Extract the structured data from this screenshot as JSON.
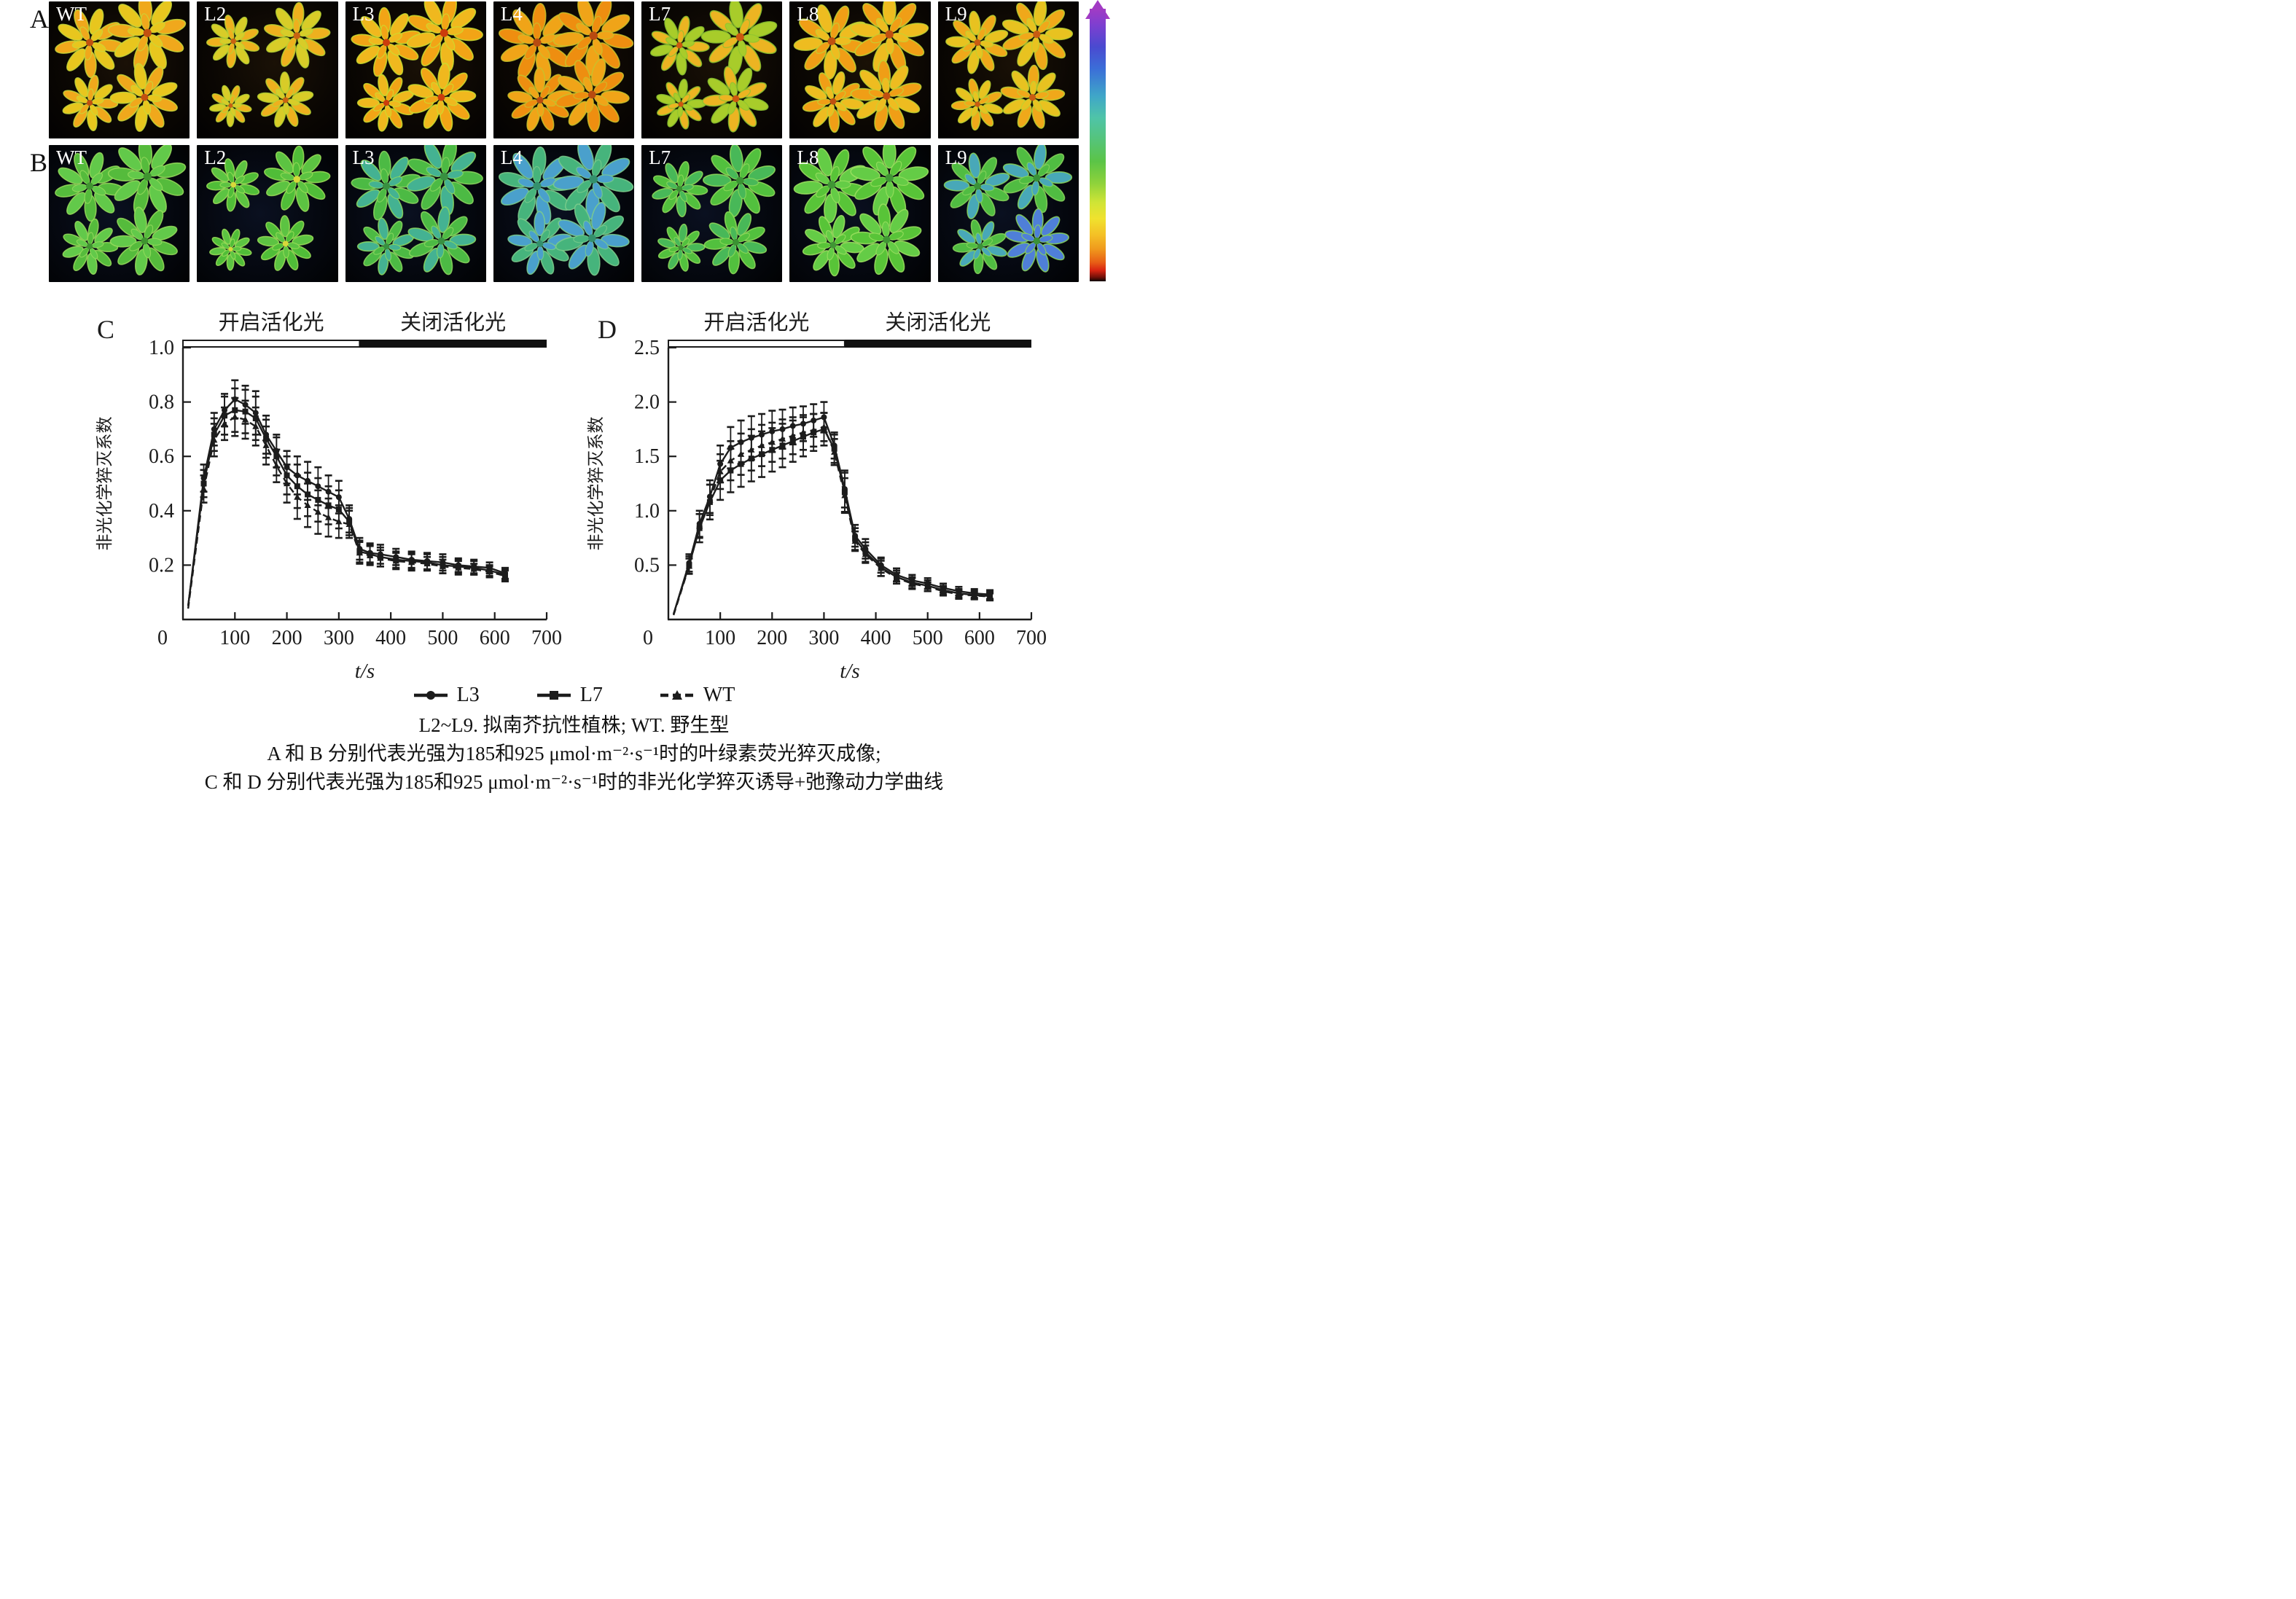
{
  "figure": {
    "panel_letters": {
      "A": "A",
      "B": "B",
      "C": "C",
      "D": "D"
    },
    "row_a": {
      "panels": [
        {
          "label": "WT",
          "leaf": "#f0a81c",
          "leaf2": "#e8c61e",
          "edge": "#c8d838",
          "center": "#c25010",
          "plants": [
            [
              0.29,
              0.3,
              1.0
            ],
            [
              0.7,
              0.23,
              1.12
            ],
            [
              0.29,
              0.74,
              0.8
            ],
            [
              0.68,
              0.7,
              0.98
            ]
          ]
        },
        {
          "label": "L2",
          "leaf": "#eeb01e",
          "leaf2": "#d8cc28",
          "edge": "#b8d434",
          "center": "#c86212",
          "plants": [
            [
              0.26,
              0.29,
              0.76
            ],
            [
              0.71,
              0.25,
              0.95
            ],
            [
              0.24,
              0.76,
              0.6
            ],
            [
              0.63,
              0.72,
              0.8
            ]
          ]
        },
        {
          "label": "L3",
          "leaf": "#f2a416",
          "leaf2": "#f0b81e",
          "edge": "#cade30",
          "center": "#cc3c0c",
          "plants": [
            [
              0.29,
              0.3,
              1.0
            ],
            [
              0.7,
              0.23,
              1.1
            ],
            [
              0.29,
              0.74,
              0.82
            ],
            [
              0.68,
              0.7,
              0.98
            ]
          ]
        },
        {
          "label": "L4",
          "leaf": "#ee8e10",
          "leaf2": "#f0a418",
          "edge": "#c8c22c",
          "center": "#b84a10",
          "plants": [
            [
              0.31,
              0.3,
              1.12
            ],
            [
              0.71,
              0.25,
              1.15
            ],
            [
              0.33,
              0.72,
              0.92
            ],
            [
              0.7,
              0.68,
              1.06
            ]
          ]
        },
        {
          "label": "L7",
          "leaf": "#ecb422",
          "leaf2": "#a8cc2a",
          "edge": "#8cc430",
          "center": "#cc5810",
          "plants": [
            [
              0.27,
              0.32,
              0.85
            ],
            [
              0.7,
              0.26,
              1.1
            ],
            [
              0.28,
              0.75,
              0.72
            ],
            [
              0.67,
              0.71,
              0.95
            ]
          ]
        },
        {
          "label": "L8",
          "leaf": "#f09e16",
          "leaf2": "#eebc20",
          "edge": "#c0d434",
          "center": "#c05010",
          "plants": [
            [
              0.3,
              0.29,
              1.08
            ],
            [
              0.71,
              0.24,
              1.12
            ],
            [
              0.31,
              0.73,
              0.88
            ],
            [
              0.69,
              0.69,
              1.02
            ]
          ]
        },
        {
          "label": "L9",
          "leaf": "#f0a81a",
          "leaf2": "#e8c220",
          "edge": "#bcd232",
          "center": "#c85c12",
          "plants": [
            [
              0.28,
              0.3,
              0.9
            ],
            [
              0.7,
              0.24,
              1.02
            ],
            [
              0.28,
              0.75,
              0.74
            ],
            [
              0.67,
              0.7,
              0.92
            ]
          ]
        }
      ]
    },
    "row_b": {
      "panels": [
        {
          "label": "WT",
          "leaf": "#55bb3c",
          "leaf2": "#62c94a",
          "edge": "#96dc5c",
          "center": "#3f9430",
          "plants": [
            [
              0.29,
              0.3,
              1.0
            ],
            [
              0.7,
              0.23,
              1.12
            ],
            [
              0.29,
              0.74,
              0.8
            ],
            [
              0.68,
              0.7,
              0.98
            ]
          ]
        },
        {
          "label": "L2",
          "leaf": "#50bd38",
          "leaf2": "#5cc342",
          "edge": "#9ade58",
          "center": "#d8d83a",
          "plants": [
            [
              0.26,
              0.29,
              0.76
            ],
            [
              0.71,
              0.25,
              0.95
            ],
            [
              0.24,
              0.76,
              0.6
            ],
            [
              0.63,
              0.72,
              0.8
            ]
          ]
        },
        {
          "label": "L3",
          "leaf": "#4cba44",
          "leaf2": "#44b292",
          "edge": "#8cd860",
          "center": "#389040",
          "plants": [
            [
              0.29,
              0.3,
              1.0
            ],
            [
              0.7,
              0.23,
              1.1
            ],
            [
              0.29,
              0.74,
              0.82
            ],
            [
              0.68,
              0.7,
              0.98
            ]
          ]
        },
        {
          "label": "L4",
          "leaf": "#46b47c",
          "leaf2": "#4aa0cc",
          "edge": "#7ccc8c",
          "center": "#34906c",
          "plants": [
            [
              0.31,
              0.3,
              1.12
            ],
            [
              0.71,
              0.25,
              1.15
            ],
            [
              0.33,
              0.72,
              0.92
            ],
            [
              0.7,
              0.68,
              1.06
            ]
          ]
        },
        {
          "label": "L7",
          "leaf": "#52c03e",
          "leaf2": "#48b858",
          "edge": "#90da5a",
          "center": "#3a9232",
          "plants": [
            [
              0.27,
              0.32,
              0.8
            ],
            [
              0.7,
              0.26,
              1.05
            ],
            [
              0.28,
              0.75,
              0.68
            ],
            [
              0.67,
              0.71,
              0.9
            ]
          ]
        },
        {
          "label": "L8",
          "leaf": "#58c438",
          "leaf2": "#64cc46",
          "edge": "#9ce060",
          "center": "#409634",
          "plants": [
            [
              0.3,
              0.29,
              1.08
            ],
            [
              0.71,
              0.24,
              1.12
            ],
            [
              0.31,
              0.73,
              0.88
            ],
            [
              0.69,
              0.69,
              1.02
            ]
          ]
        },
        {
          "label": "L9",
          "leaf": "#50bc42",
          "leaf2": "#48a8b8",
          "edge": "#88d45c",
          "center": "#3a9238",
          "plants": [
            [
              0.28,
              0.3,
              0.95
            ],
            [
              0.7,
              0.24,
              1.0
            ],
            [
              0.3,
              0.74,
              0.78
            ],
            [
              0.7,
              0.7,
              0.92,
              "#4f7fd8"
            ]
          ]
        }
      ]
    },
    "colorbar": {
      "stops": [
        {
          "c": "#a23bc4",
          "p": 0
        },
        {
          "c": "#7d3fd0",
          "p": 6
        },
        {
          "c": "#4a4ad0",
          "p": 14
        },
        {
          "c": "#3b6ed8",
          "p": 22
        },
        {
          "c": "#3fa6c8",
          "p": 32
        },
        {
          "c": "#4fc4a8",
          "p": 40
        },
        {
          "c": "#55c47a",
          "p": 48
        },
        {
          "c": "#5bc447",
          "p": 56
        },
        {
          "c": "#8ed23b",
          "p": 64
        },
        {
          "c": "#cfe436",
          "p": 71
        },
        {
          "c": "#f0e22e",
          "p": 77
        },
        {
          "c": "#f4c026",
          "p": 83
        },
        {
          "c": "#f09b1d",
          "p": 88
        },
        {
          "c": "#e85f16",
          "p": 93
        },
        {
          "c": "#d82412",
          "p": 96
        },
        {
          "c": "#701008",
          "p": 98.5
        },
        {
          "c": "#0c0503",
          "p": 100
        }
      ]
    },
    "legend": [
      {
        "label": "L3",
        "marker": "circle",
        "line": "solid"
      },
      {
        "label": "L7",
        "marker": "square",
        "line": "solid"
      },
      {
        "label": "WT",
        "marker": "triangle",
        "line": "dashed"
      }
    ],
    "captions": [
      "L2~L9. 拟南芥抗性植株; WT. 野生型",
      "A 和 B 分别代表光强为185和925 μmol·m⁻²·s⁻¹时的叶绿素荧光猝灭成像;",
      "C 和 D 分别代表光强为185和925 μmol·m⁻²·s⁻¹时的非光化学猝灭诱导+弛豫动力学曲线"
    ]
  },
  "chart_data": [
    {
      "panel": "C",
      "type": "line",
      "title_light_on": "开启活化光",
      "title_light_off": "关闭活化光",
      "xlabel": "t/s",
      "ylabel": "非光化学猝灭系数",
      "xlim": [
        0,
        700
      ],
      "ylim": [
        0,
        1.0
      ],
      "xticks": [
        0,
        100,
        200,
        300,
        400,
        500,
        600,
        700
      ],
      "yticks": [
        0.2,
        0.4,
        0.6,
        0.8,
        1.0
      ],
      "light_off_time_s": 340,
      "x": [
        10,
        40,
        60,
        80,
        100,
        120,
        140,
        160,
        180,
        200,
        220,
        240,
        260,
        280,
        300,
        320,
        340,
        360,
        380,
        410,
        440,
        470,
        500,
        530,
        560,
        590,
        620
      ],
      "series": [
        {
          "name": "L3",
          "marker": "circle",
          "line": "solid",
          "values": [
            0.05,
            0.52,
            0.7,
            0.77,
            0.81,
            0.79,
            0.76,
            0.68,
            0.62,
            0.56,
            0.53,
            0.51,
            0.49,
            0.47,
            0.45,
            0.37,
            0.26,
            0.245,
            0.24,
            0.23,
            0.22,
            0.215,
            0.21,
            0.2,
            0.195,
            0.19,
            0.17
          ],
          "errors": [
            0.02,
            0.05,
            0.06,
            0.06,
            0.07,
            0.07,
            0.08,
            0.07,
            0.06,
            0.06,
            0.07,
            0.07,
            0.07,
            0.06,
            0.06,
            0.05,
            0.04,
            0.035,
            0.035,
            0.03,
            0.03,
            0.03,
            0.03,
            0.025,
            0.025,
            0.02,
            0.02
          ]
        },
        {
          "name": "L7",
          "marker": "square",
          "line": "solid",
          "values": [
            0.05,
            0.5,
            0.68,
            0.75,
            0.77,
            0.765,
            0.74,
            0.665,
            0.6,
            0.53,
            0.49,
            0.46,
            0.44,
            0.42,
            0.405,
            0.36,
            0.25,
            0.24,
            0.23,
            0.22,
            0.215,
            0.21,
            0.2,
            0.195,
            0.19,
            0.18,
            0.165
          ],
          "errors": [
            0.02,
            0.05,
            0.06,
            0.07,
            0.08,
            0.08,
            0.08,
            0.07,
            0.07,
            0.07,
            0.08,
            0.08,
            0.08,
            0.07,
            0.07,
            0.05,
            0.04,
            0.035,
            0.035,
            0.03,
            0.03,
            0.03,
            0.03,
            0.025,
            0.025,
            0.02,
            0.02
          ]
        },
        {
          "name": "WT",
          "marker": "triangle",
          "line": "dashed",
          "values": [
            0.04,
            0.48,
            0.66,
            0.72,
            0.745,
            0.735,
            0.71,
            0.64,
            0.565,
            0.5,
            0.45,
            0.42,
            0.395,
            0.375,
            0.36,
            0.35,
            0.245,
            0.235,
            0.225,
            0.215,
            0.21,
            0.205,
            0.195,
            0.19,
            0.185,
            0.175,
            0.16
          ],
          "errors": [
            0.02,
            0.05,
            0.06,
            0.06,
            0.07,
            0.07,
            0.07,
            0.07,
            0.06,
            0.07,
            0.08,
            0.08,
            0.08,
            0.07,
            0.06,
            0.05,
            0.04,
            0.035,
            0.03,
            0.03,
            0.03,
            0.025,
            0.025,
            0.025,
            0.02,
            0.02,
            0.02
          ]
        }
      ]
    },
    {
      "panel": "D",
      "type": "line",
      "title_light_on": "开启活化光",
      "title_light_off": "关闭活化光",
      "xlabel": "t/s",
      "ylabel": "非光化学猝灭系数",
      "xlim": [
        0,
        700
      ],
      "ylim": [
        0,
        2.5
      ],
      "xticks": [
        0,
        100,
        200,
        300,
        400,
        500,
        600,
        700
      ],
      "yticks": [
        0.5,
        1.0,
        1.5,
        2.0,
        2.5
      ],
      "light_off_time_s": 340,
      "x": [
        10,
        40,
        60,
        80,
        100,
        120,
        140,
        160,
        180,
        200,
        220,
        240,
        260,
        280,
        300,
        320,
        340,
        360,
        380,
        410,
        440,
        470,
        500,
        530,
        560,
        590,
        620
      ],
      "series": [
        {
          "name": "L3",
          "marker": "circle",
          "line": "solid",
          "values": [
            0.05,
            0.52,
            0.88,
            1.13,
            1.43,
            1.58,
            1.63,
            1.67,
            1.7,
            1.73,
            1.75,
            1.78,
            1.8,
            1.83,
            1.86,
            1.6,
            1.2,
            0.77,
            0.65,
            0.5,
            0.41,
            0.36,
            0.33,
            0.29,
            0.26,
            0.24,
            0.23
          ],
          "errors": [
            0.02,
            0.08,
            0.12,
            0.15,
            0.17,
            0.19,
            0.2,
            0.2,
            0.19,
            0.19,
            0.18,
            0.17,
            0.16,
            0.15,
            0.14,
            0.12,
            0.17,
            0.1,
            0.09,
            0.07,
            0.06,
            0.05,
            0.05,
            0.04,
            0.04,
            0.04,
            0.04
          ]
        },
        {
          "name": "L7",
          "marker": "square",
          "line": "solid",
          "values": [
            0.05,
            0.5,
            0.84,
            1.08,
            1.28,
            1.37,
            1.43,
            1.48,
            1.52,
            1.56,
            1.6,
            1.64,
            1.68,
            1.72,
            1.75,
            1.57,
            1.17,
            0.74,
            0.62,
            0.48,
            0.39,
            0.34,
            0.31,
            0.27,
            0.24,
            0.225,
            0.215
          ],
          "errors": [
            0.02,
            0.08,
            0.13,
            0.16,
            0.18,
            0.2,
            0.21,
            0.21,
            0.21,
            0.2,
            0.2,
            0.19,
            0.18,
            0.17,
            0.15,
            0.13,
            0.18,
            0.1,
            0.09,
            0.08,
            0.06,
            0.05,
            0.05,
            0.04,
            0.04,
            0.04,
            0.04
          ]
        },
        {
          "name": "WT",
          "marker": "triangle",
          "line": "dashed",
          "values": [
            0.04,
            0.49,
            0.86,
            1.1,
            1.36,
            1.46,
            1.52,
            1.56,
            1.6,
            1.63,
            1.66,
            1.69,
            1.72,
            1.74,
            1.77,
            1.54,
            1.14,
            0.72,
            0.6,
            0.47,
            0.38,
            0.33,
            0.3,
            0.26,
            0.23,
            0.22,
            0.21
          ],
          "errors": [
            0.02,
            0.07,
            0.11,
            0.14,
            0.16,
            0.18,
            0.19,
            0.19,
            0.19,
            0.18,
            0.18,
            0.17,
            0.16,
            0.15,
            0.13,
            0.12,
            0.16,
            0.09,
            0.08,
            0.07,
            0.05,
            0.05,
            0.04,
            0.04,
            0.04,
            0.03,
            0.03
          ]
        }
      ]
    }
  ]
}
